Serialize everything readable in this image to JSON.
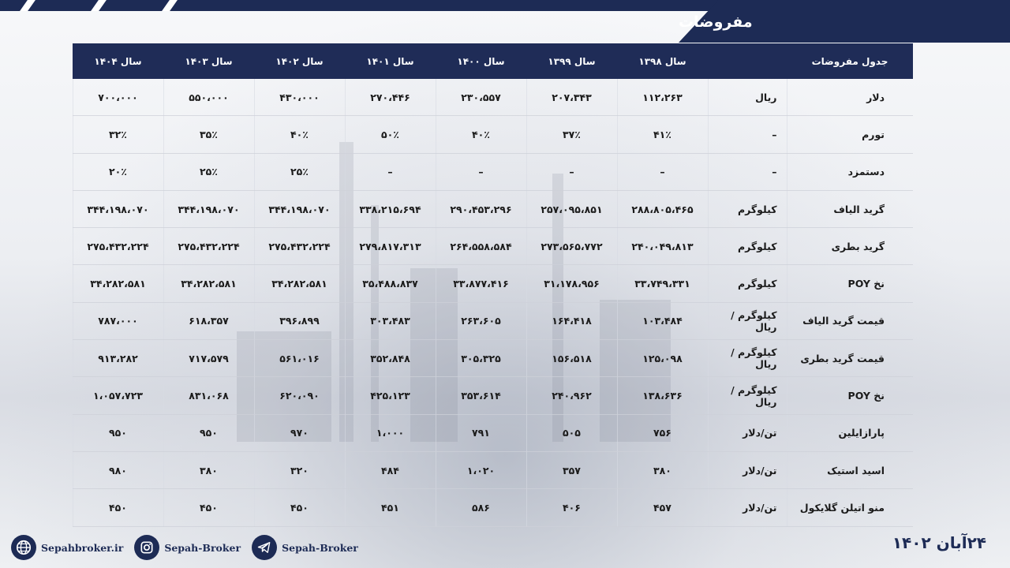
{
  "title": "مفروضات",
  "date": "۲۴آبان ۱۴۰۲",
  "table": {
    "header": [
      "جدول مفروضات",
      "",
      "سال ۱۳۹۸",
      "سال ۱۳۹۹",
      "سال ۱۴۰۰",
      "سال ۱۴۰۱",
      "سال ۱۴۰۲",
      "سال ۱۴۰۳",
      "سال ۱۴۰۴"
    ],
    "rows": [
      {
        "label": "دلار",
        "unit": "ریال",
        "values": [
          "۱۱۲،۲۶۳",
          "۲۰۷،۳۴۳",
          "۲۳۰،۵۵۷",
          "۲۷۰،۴۴۶",
          "۴۳۰،۰۰۰",
          "۵۵۰،۰۰۰",
          "۷۰۰،۰۰۰"
        ]
      },
      {
        "label": "تورم",
        "unit": "–",
        "values": [
          "۴۱٪",
          "۳۷٪",
          "۴۰٪",
          "۵۰٪",
          "۴۰٪",
          "۳۵٪",
          "۳۲٪"
        ]
      },
      {
        "label": "دستمزد",
        "unit": "–",
        "values": [
          "–",
          "–",
          "–",
          "–",
          "۲۵٪",
          "۲۵٪",
          "۲۰٪"
        ]
      },
      {
        "label": "گرید الیاف",
        "unit": "کیلوگرم",
        "values": [
          "۲۸۸،۸۰۵،۴۶۵",
          "۲۵۷،۰۹۵،۸۵۱",
          "۲۹۰،۴۵۳،۲۹۶",
          "۳۳۸،۲۱۵،۶۹۴",
          "۳۴۴،۱۹۸،۰۷۰",
          "۳۴۴،۱۹۸،۰۷۰",
          "۳۴۴،۱۹۸،۰۷۰"
        ]
      },
      {
        "label": "گرید بطری",
        "unit": "کیلوگرم",
        "values": [
          "۲۴۰،۰۴۹،۸۱۳",
          "۲۷۳،۵۶۵،۷۷۲",
          "۲۶۴،۵۵۸،۵۸۴",
          "۲۷۹،۸۱۷،۳۱۳",
          "۲۷۵،۴۳۲،۲۲۴",
          "۲۷۵،۴۳۲،۲۲۴",
          "۲۷۵،۴۳۲،۲۲۴"
        ]
      },
      {
        "label": "نخ POY",
        "unit": "کیلوگرم",
        "values": [
          "۳۳،۷۴۹،۳۳۱",
          "۳۱،۱۷۸،۹۵۶",
          "۳۳،۸۷۷،۴۱۶",
          "۳۵،۴۸۸،۸۳۷",
          "۳۴،۲۸۲،۵۸۱",
          "۳۴،۲۸۲،۵۸۱",
          "۳۴،۲۸۲،۵۸۱"
        ]
      },
      {
        "label": "قیمت گرید الیاف",
        "unit": "کیلوگرم / ریال",
        "values": [
          "۱۰۳،۴۸۴",
          "۱۶۴،۴۱۸",
          "۲۶۳،۶۰۵",
          "۳۰۳،۴۸۳",
          "۳۹۶،۸۹۹",
          "۶۱۸،۳۵۷",
          "۷۸۷،۰۰۰"
        ]
      },
      {
        "label": "قیمت گرید بطری",
        "unit": "کیلوگرم / ریال",
        "values": [
          "۱۲۵،۰۹۸",
          "۱۵۶،۵۱۸",
          "۳۰۵،۳۲۵",
          "۳۵۲،۸۴۸",
          "۵۶۱،۰۱۶",
          "۷۱۷،۵۷۹",
          "۹۱۳،۲۸۲"
        ]
      },
      {
        "label": "نخ POY",
        "unit": "کیلوگرم / ریال",
        "values": [
          "۱۳۸،۶۳۶",
          "۲۴۰،۹۶۲",
          "۳۵۳،۶۱۴",
          "۴۲۵،۱۲۳",
          "۶۲۰،۰۹۰",
          "۸۳۱،۰۶۸",
          "۱،۰۵۷،۷۲۳"
        ]
      },
      {
        "label": "پارازایلین",
        "unit": "تن/دلار",
        "values": [
          "۷۵۶",
          "۵۰۵",
          "۷۹۱",
          "۱،۰۰۰",
          "۹۷۰",
          "۹۵۰",
          "۹۵۰"
        ]
      },
      {
        "label": "اسید استیک",
        "unit": "تن/دلار",
        "values": [
          "۳۸۰",
          "۳۵۷",
          "۱،۰۲۰",
          "۴۸۴",
          "۳۲۰",
          "۳۸۰",
          "۹۸۰"
        ]
      },
      {
        "label": "منو اتیلن گلایکول",
        "unit": "تن/دلار",
        "values": [
          "۴۵۷",
          "۴۰۶",
          "۵۸۶",
          "۴۵۱",
          "۴۵۰",
          "۴۵۰",
          "۴۵۰"
        ]
      }
    ]
  },
  "footer": {
    "website": "Sepahbroker.ir",
    "instagram": "Sepah-Broker",
    "telegram": "Sepah-Broker",
    "icons": [
      "globe-icon",
      "instagram-icon",
      "telegram-icon"
    ]
  },
  "colors": {
    "navy": "#1d2b55"
  }
}
